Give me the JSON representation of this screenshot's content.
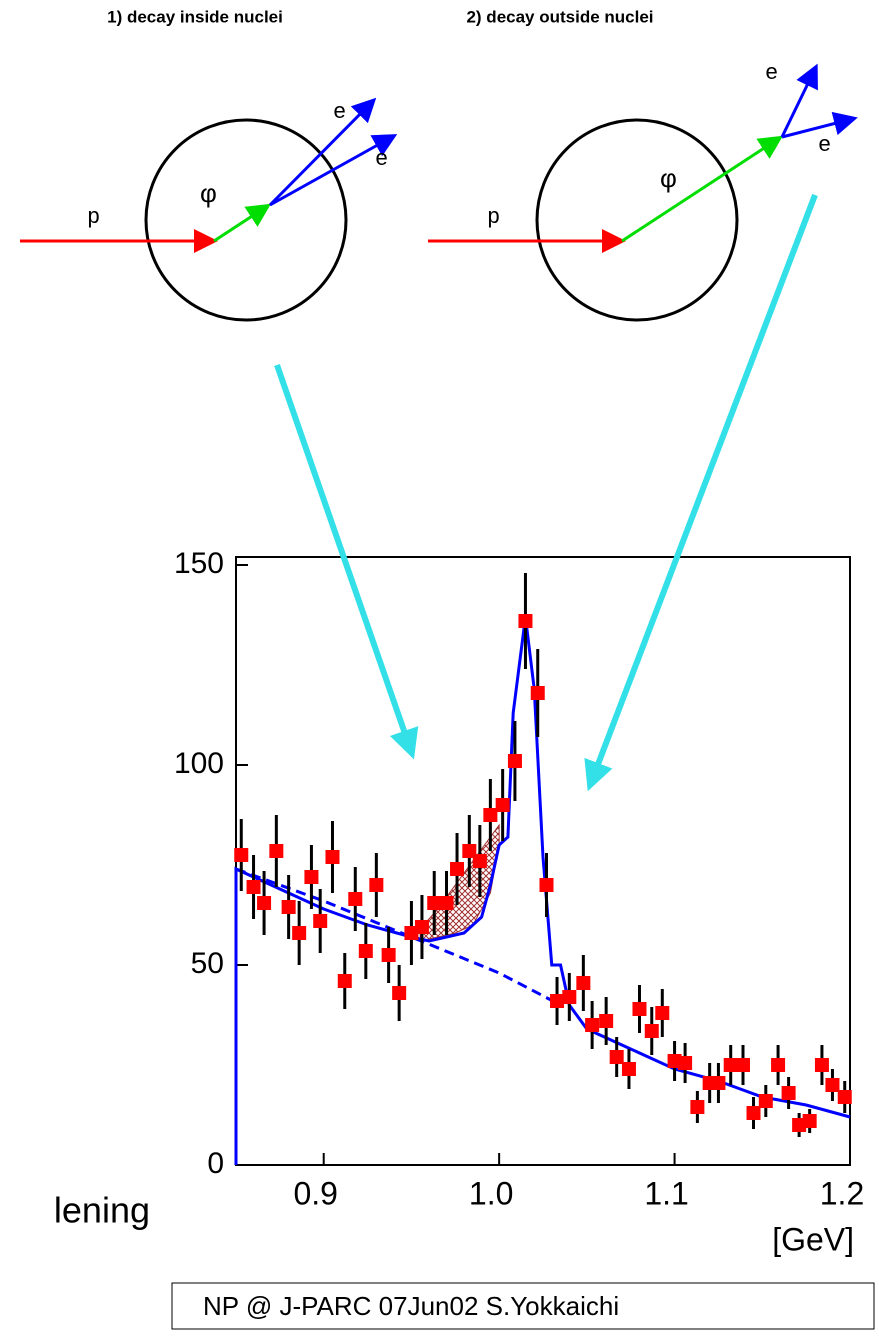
{
  "diagrams": [
    {
      "title": "1) decay inside nuclei",
      "beam": "p",
      "meson": "φ",
      "leptons": [
        "e",
        "e"
      ]
    },
    {
      "title": "2) decay outside nuclei",
      "beam": "p",
      "meson": "φ",
      "leptons": [
        "e",
        "e"
      ]
    }
  ],
  "fragment": "lening",
  "footer": "NP @ J-PARC  07Jun02   S.Yokkaichi",
  "chart_data": {
    "type": "scatter",
    "xlabel": "[GeV]",
    "xlim": [
      0.85,
      1.2
    ],
    "ylim": [
      0,
      150
    ],
    "xticks": [
      0.9,
      {
        "value": 1,
        "label": "1.0"
      },
      1.1,
      1.2
    ],
    "yticks": [
      0,
      50,
      100,
      150
    ],
    "color": "#ff0000",
    "x": [
      0.853,
      0.86,
      0.866,
      0.873,
      0.88,
      0.886,
      0.893,
      0.898,
      0.905,
      0.912,
      0.918,
      0.924,
      0.93,
      0.937,
      0.943,
      0.95,
      0.956,
      0.963,
      0.97,
      0.976,
      0.983,
      0.989,
      0.995,
      1.002,
      1.009,
      1.015,
      1.022,
      1.027,
      1.033,
      1.04,
      1.048,
      1.053,
      1.061,
      1.067,
      1.074,
      1.08,
      1.087,
      1.093,
      1.1,
      1.106,
      1.113,
      1.12,
      1.125,
      1.132,
      1.139,
      1.145,
      1.152,
      1.159,
      1.165,
      1.171,
      1.177,
      1.184,
      1.19,
      1.197
    ],
    "values": [
      77.5,
      69.5,
      65.5,
      78.5,
      64.5,
      58,
      72,
      61,
      77,
      46,
      66.5,
      53.5,
      70,
      52.5,
      43,
      58,
      59.5,
      65.5,
      65.5,
      74,
      78.5,
      76,
      87.5,
      90,
      101,
      136,
      118,
      70,
      41,
      42,
      45.5,
      35,
      36,
      27,
      24,
      39,
      33.5,
      38,
      26,
      25.5,
      14.5,
      20.5,
      20.5,
      25,
      25,
      13,
      16,
      25,
      18,
      10,
      11,
      25,
      20,
      17
    ],
    "errors": [
      9,
      8,
      8,
      9,
      8,
      8,
      8,
      8,
      9,
      7,
      8,
      7,
      8,
      7,
      7,
      8,
      8,
      8,
      8,
      9,
      9,
      9,
      9,
      9,
      10,
      12,
      11,
      8,
      6,
      6,
      7,
      6,
      6,
      5,
      5,
      6,
      6,
      6,
      5,
      5,
      4,
      5,
      5,
      5,
      5,
      4,
      4,
      5,
      4,
      3,
      3,
      5,
      4,
      4
    ],
    "solid": {
      "color": "#0000ff",
      "x": [
        0.85,
        0.85,
        0.875,
        0.9,
        0.925,
        0.95,
        0.96,
        0.97,
        0.98,
        0.99,
        0.995,
        1.0,
        1.005,
        1.008,
        1.015,
        1.02,
        1.025,
        1.03,
        1.035,
        1.04,
        1.05,
        1.075,
        1.1,
        1.125,
        1.15,
        1.175,
        1.2
      ],
      "values": [
        0,
        74,
        69,
        64,
        60,
        57,
        56,
        57,
        58,
        62,
        70,
        80,
        82,
        113,
        137,
        119,
        77,
        50,
        50,
        40,
        34,
        29,
        24,
        21,
        17,
        15,
        12
      ]
    },
    "dashed": {
      "color": "#0000ff",
      "x": [
        0.85,
        0.9,
        0.95,
        1.0,
        1.035
      ],
      "values": [
        74,
        66,
        57,
        48,
        40
      ]
    },
    "hatch": {
      "color": "#a03030",
      "x": [
        0.955,
        0.965,
        0.975,
        0.985,
        0.995,
        1.0
      ],
      "upper": [
        59,
        64,
        70,
        76,
        82,
        85
      ],
      "lower": [
        56,
        57,
        58,
        60,
        68,
        80
      ]
    }
  }
}
